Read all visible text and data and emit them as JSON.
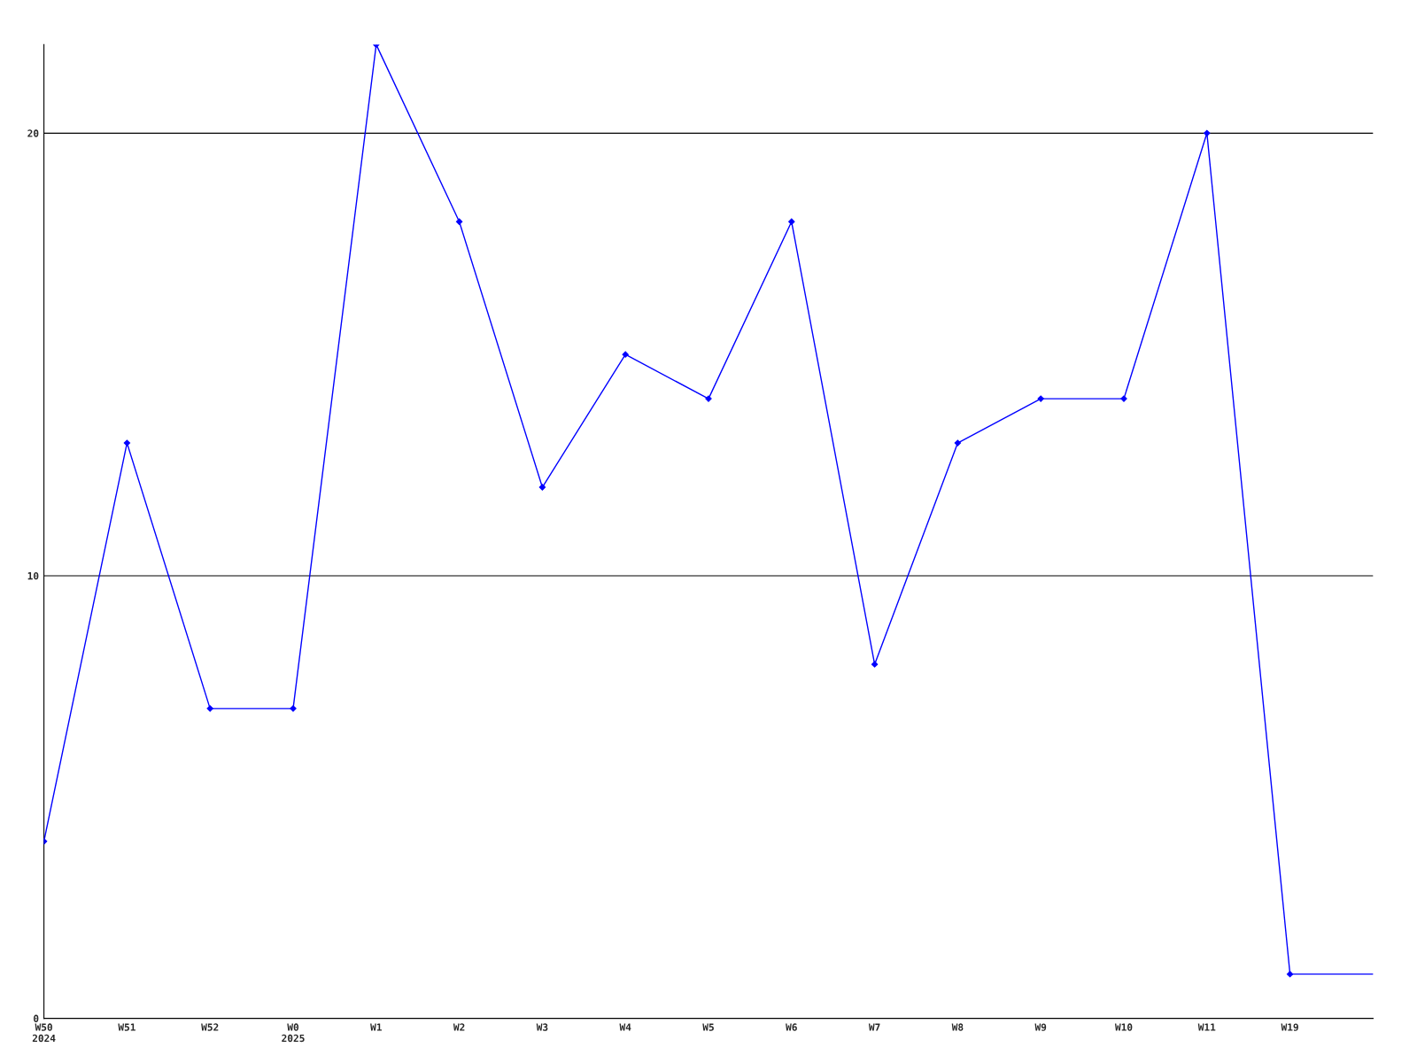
{
  "chart_data": {
    "type": "line",
    "categories": [
      "W50\n2024",
      "W51",
      "W52",
      "W0\n2025",
      "W1",
      "W2",
      "W3",
      "W4",
      "W5",
      "W6",
      "W7",
      "W8",
      "W9",
      "W10",
      "W11",
      "W19",
      null
    ],
    "series": [
      {
        "color": "#0000ff",
        "values": [
          4,
          13,
          7,
          7,
          22,
          18,
          12,
          15,
          14,
          18,
          8,
          13,
          14,
          14,
          20,
          1,
          1
        ]
      }
    ],
    "ylim": [
      0,
      22
    ],
    "yticks": [
      0,
      10,
      20
    ],
    "grid": "y",
    "marker": "diamond",
    "line_style": "solid",
    "legend": false
  }
}
